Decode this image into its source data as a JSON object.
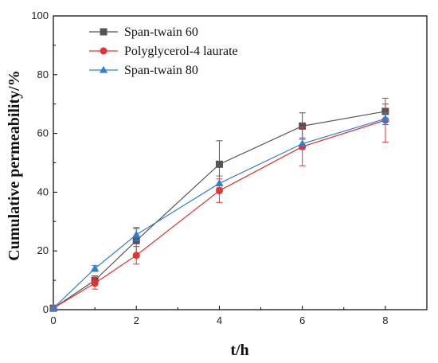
{
  "chart_data": {
    "type": "line",
    "xlabel": "t/h",
    "ylabel": "Cumulative permeability/%",
    "xlim": [
      0,
      9
    ],
    "ylim": [
      0,
      100
    ],
    "xticks": [
      0,
      2,
      4,
      6,
      8
    ],
    "yticks": [
      0,
      20,
      40,
      60,
      80,
      100
    ],
    "x": [
      0,
      1,
      2,
      4,
      6,
      8
    ],
    "legend_position": "top-left",
    "grid": false,
    "series": [
      {
        "name": "Span-twain 60",
        "color": "#555555",
        "marker": "square",
        "values": [
          0.5,
          10,
          23.5,
          49.5,
          62.5,
          67.5
        ],
        "errors": [
          0.5,
          1.5,
          4.5,
          8,
          4.5,
          2.5
        ]
      },
      {
        "name": "Polyglycerol-4 laurate",
        "color": "#e8302c",
        "marker": "circle",
        "values": [
          0.5,
          9,
          18.5,
          40.5,
          55.5,
          64.5
        ],
        "errors": [
          0.5,
          2,
          3,
          4,
          6.5,
          7.5
        ]
      },
      {
        "name": "Span-twain 80",
        "color": "#2f7fd6",
        "marker": "triangle",
        "values": [
          0.5,
          14,
          25.5,
          43,
          56.5,
          65
        ],
        "errors": [
          0.5,
          1,
          2,
          2.5,
          2,
          2
        ]
      }
    ]
  }
}
